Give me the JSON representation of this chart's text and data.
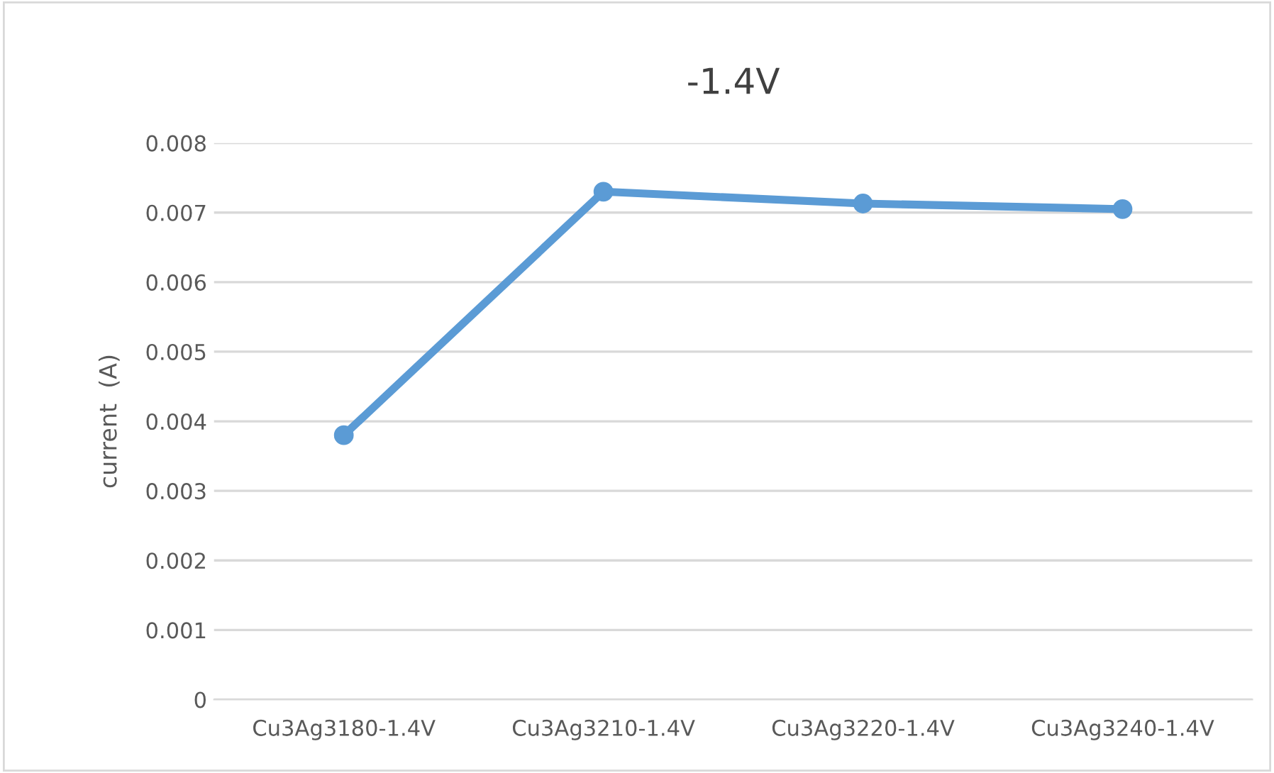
{
  "chart_data": {
    "type": "line",
    "title": "-1.4V",
    "ylabel": "current  (A)",
    "categories": [
      "Cu3Ag3180-1.4V",
      "Cu3Ag3210-1.4V",
      "Cu3Ag3220-1.4V",
      "Cu3Ag3240-1.4V"
    ],
    "series": [
      {
        "color": "#5b9bd5",
        "values": [
          0.0038,
          0.0073,
          0.00713,
          0.00705
        ]
      }
    ],
    "ylim": [
      0,
      0.008
    ],
    "yticks": [
      0,
      0.001,
      0.002,
      0.003,
      0.004,
      0.005,
      0.006,
      0.007,
      0.008
    ],
    "grid": "y",
    "marker": "circle",
    "line_style": "solid"
  }
}
